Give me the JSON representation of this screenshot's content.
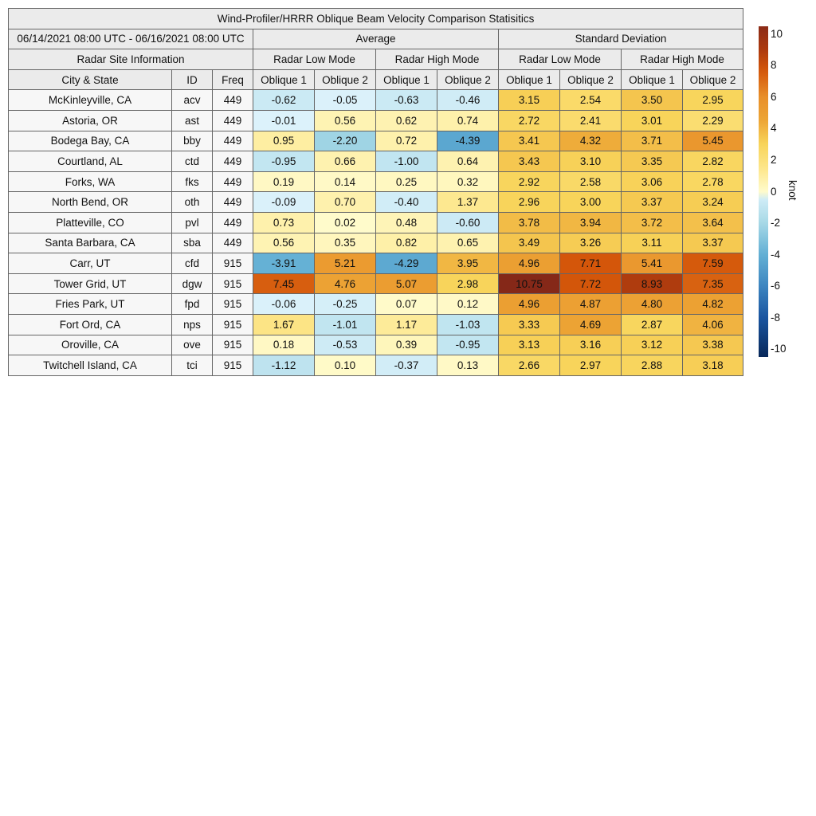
{
  "title": "Wind-Profiler/HRRR Oblique Beam Velocity Comparison Statisitics",
  "date_range": "06/14/2021 08:00 UTC - 06/16/2021 08:00 UTC",
  "group_average": "Average",
  "group_std": "Standard Deviation",
  "site_info": "Radar Site Information",
  "mode_low": "Radar Low Mode",
  "mode_high": "Radar High Mode",
  "col_city": "City & State",
  "col_id": "ID",
  "col_freq": "Freq",
  "col_ob1": "Oblique 1",
  "col_ob2": "Oblique 2",
  "chart_data": {
    "type": "table",
    "colorbar": {
      "label": "knot",
      "range": [
        -10.5,
        10.5
      ],
      "ticks": [
        "10",
        "8",
        "6",
        "4",
        "2",
        "0",
        "-2",
        "-4",
        "-6",
        "-8",
        "-10"
      ]
    },
    "columns": [
      "Avg Low Oblique 1",
      "Avg Low Oblique 2",
      "Avg High Oblique 1",
      "Avg High Oblique 2",
      "Std Low Oblique 1",
      "Std Low Oblique 2",
      "Std High Oblique 1",
      "Std High Oblique 2"
    ],
    "rows": [
      {
        "city": "McKinleyville, CA",
        "id": "acv",
        "freq": "449",
        "values": [
          "-0.62",
          "-0.05",
          "-0.63",
          "-0.46",
          "3.15",
          "2.54",
          "3.50",
          "2.95"
        ]
      },
      {
        "city": "Astoria, OR",
        "id": "ast",
        "freq": "449",
        "values": [
          "-0.01",
          "0.56",
          "0.62",
          "0.74",
          "2.72",
          "2.41",
          "3.01",
          "2.29"
        ]
      },
      {
        "city": "Bodega Bay, CA",
        "id": "bby",
        "freq": "449",
        "values": [
          "0.95",
          "-2.20",
          "0.72",
          "-4.39",
          "3.41",
          "4.32",
          "3.71",
          "5.45"
        ]
      },
      {
        "city": "Courtland, AL",
        "id": "ctd",
        "freq": "449",
        "values": [
          "-0.95",
          "0.66",
          "-1.00",
          "0.64",
          "3.43",
          "3.10",
          "3.35",
          "2.82"
        ]
      },
      {
        "city": "Forks, WA",
        "id": "fks",
        "freq": "449",
        "values": [
          "0.19",
          "0.14",
          "0.25",
          "0.32",
          "2.92",
          "2.58",
          "3.06",
          "2.78"
        ]
      },
      {
        "city": "North Bend, OR",
        "id": "oth",
        "freq": "449",
        "values": [
          "-0.09",
          "0.70",
          "-0.40",
          "1.37",
          "2.96",
          "3.00",
          "3.37",
          "3.24"
        ]
      },
      {
        "city": "Platteville, CO",
        "id": "pvl",
        "freq": "449",
        "values": [
          "0.73",
          "0.02",
          "0.48",
          "-0.60",
          "3.78",
          "3.94",
          "3.72",
          "3.64"
        ]
      },
      {
        "city": "Santa Barbara, CA",
        "id": "sba",
        "freq": "449",
        "values": [
          "0.56",
          "0.35",
          "0.82",
          "0.65",
          "3.49",
          "3.26",
          "3.11",
          "3.37"
        ]
      },
      {
        "city": "Carr, UT",
        "id": "cfd",
        "freq": "915",
        "values": [
          "-3.91",
          "5.21",
          "-4.29",
          "3.95",
          "4.96",
          "7.71",
          "5.41",
          "7.59"
        ]
      },
      {
        "city": "Tower Grid, UT",
        "id": "dgw",
        "freq": "915",
        "values": [
          "7.45",
          "4.76",
          "5.07",
          "2.98",
          "10.75",
          "7.72",
          "8.93",
          "7.35"
        ]
      },
      {
        "city": "Fries Park, UT",
        "id": "fpd",
        "freq": "915",
        "values": [
          "-0.06",
          "-0.25",
          "0.07",
          "0.12",
          "4.96",
          "4.87",
          "4.80",
          "4.82"
        ]
      },
      {
        "city": "Fort Ord, CA",
        "id": "nps",
        "freq": "915",
        "values": [
          "1.67",
          "-1.01",
          "1.17",
          "-1.03",
          "3.33",
          "4.69",
          "2.87",
          "4.06"
        ]
      },
      {
        "city": "Oroville, CA",
        "id": "ove",
        "freq": "915",
        "values": [
          "0.18",
          "-0.53",
          "0.39",
          "-0.95",
          "3.13",
          "3.16",
          "3.12",
          "3.38"
        ]
      },
      {
        "city": "Twitchell Island, CA",
        "id": "tci",
        "freq": "915",
        "values": [
          "-1.12",
          "0.10",
          "-0.37",
          "0.13",
          "2.66",
          "2.97",
          "2.88",
          "3.18"
        ]
      }
    ]
  }
}
